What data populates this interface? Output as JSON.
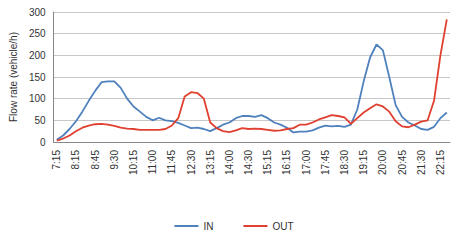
{
  "chart_data": {
    "type": "line",
    "y_label": "Flow rate (vehicle/h)",
    "categories": [
      "7:15",
      null,
      null,
      "8:15",
      null,
      null,
      "8:45",
      null,
      null,
      "9:30",
      null,
      null,
      "10:15",
      null,
      null,
      "11:00",
      null,
      null,
      "11:45",
      null,
      null,
      "12:30",
      null,
      null,
      "13:15",
      null,
      null,
      "14:00",
      null,
      null,
      "14:30",
      null,
      null,
      "15:15",
      null,
      null,
      "16:15",
      null,
      null,
      "17:00",
      null,
      null,
      "17:45",
      null,
      null,
      "18:30",
      null,
      null,
      "19:15",
      null,
      null,
      "20:00",
      null,
      null,
      "20:45",
      null,
      null,
      "21:30",
      null,
      null,
      "22:15",
      null
    ],
    "series": [
      {
        "name": "IN",
        "color": "#4f81bd",
        "values": [
          5,
          15,
          30,
          48,
          70,
          95,
          118,
          138,
          140,
          140,
          125,
          100,
          82,
          70,
          58,
          50,
          56,
          50,
          48,
          44,
          38,
          32,
          33,
          30,
          25,
          32,
          40,
          45,
          55,
          60,
          60,
          58,
          62,
          55,
          45,
          40,
          33,
          22,
          24,
          24,
          27,
          33,
          38,
          36,
          37,
          35,
          40,
          75,
          140,
          195,
          225,
          212,
          150,
          85,
          58,
          45,
          38,
          30,
          28,
          35,
          55,
          68
        ]
      },
      {
        "name": "OUT",
        "color": "#e0402f",
        "values": [
          3,
          8,
          15,
          25,
          33,
          38,
          41,
          42,
          40,
          37,
          33,
          31,
          30,
          28,
          28,
          28,
          28,
          30,
          38,
          55,
          105,
          115,
          113,
          100,
          45,
          32,
          25,
          23,
          27,
          32,
          30,
          31,
          30,
          28,
          26,
          27,
          30,
          32,
          40,
          40,
          45,
          52,
          57,
          62,
          60,
          57,
          42,
          55,
          68,
          78,
          87,
          82,
          70,
          48,
          36,
          34,
          40,
          47,
          50,
          95,
          200,
          283
        ]
      }
    ],
    "ylim": [
      0,
      300
    ],
    "yticks": [
      0,
      50,
      100,
      150,
      200,
      250,
      300
    ],
    "grid": true,
    "legend": "bottom",
    "marker": "none"
  }
}
